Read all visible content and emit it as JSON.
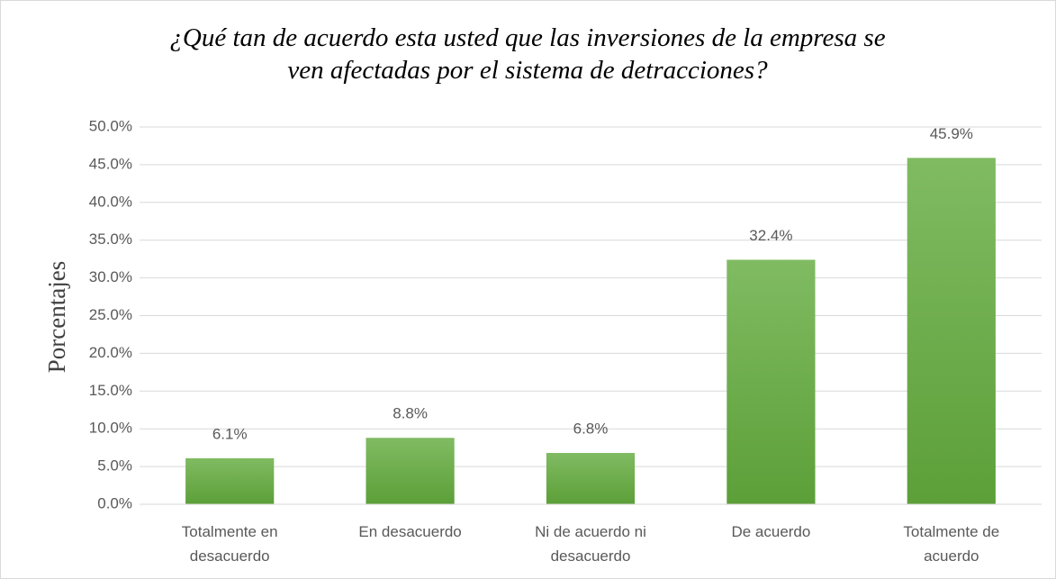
{
  "chart_data": {
    "type": "bar",
    "title": "¿Qué tan de acuerdo esta usted que las inversiones de la empresa se ven afectadas por el sistema de detracciones?",
    "y_label": "Porcentajes",
    "categories": [
      "Totalmente en desacuerdo",
      "En desacuerdo",
      "Ni de acuerdo ni desacuerdo",
      "De acuerdo",
      "Totalmente de acuerdo"
    ],
    "values": [
      6.1,
      8.8,
      6.8,
      32.4,
      45.9
    ],
    "value_labels": [
      "6.1%",
      "8.8%",
      "6.8%",
      "32.4%",
      "45.9%"
    ],
    "color": "#6aad45",
    "ylim": [
      0,
      50
    ],
    "yticks": [
      {
        "value": 0,
        "label": "0.0%"
      },
      {
        "value": 5,
        "label": "5.0%"
      },
      {
        "value": 10,
        "label": "10.0%"
      },
      {
        "value": 15,
        "label": "15.0%"
      },
      {
        "value": 20,
        "label": "20.0%"
      },
      {
        "value": 25,
        "label": "25.0%"
      },
      {
        "value": 30,
        "label": "30.0%"
      },
      {
        "value": 35,
        "label": "35.0%"
      },
      {
        "value": 40,
        "label": "40.0%"
      },
      {
        "value": 45,
        "label": "45.0%"
      },
      {
        "value": 50,
        "label": "50.0%"
      }
    ],
    "grid": true
  }
}
